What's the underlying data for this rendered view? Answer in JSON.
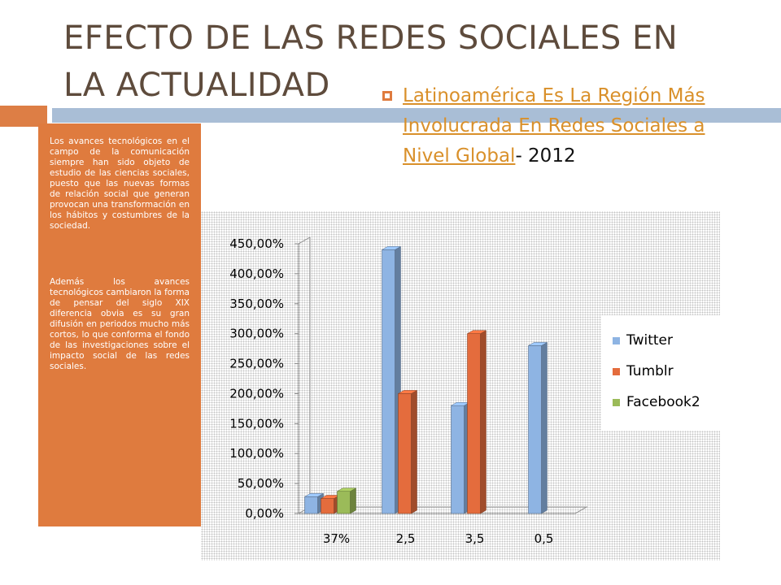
{
  "slide": {
    "title": "EFECTO DE LAS REDES SOCIALES EN LA ACTUALIDAD",
    "paragraph1": "Los avances tecnológicos en el campo de la comunicación siempre han sido objeto de estudio de las ciencias sociales, puesto que las nuevas formas de relación social que generan provocan una transformación en los hábitos y costumbres de la sociedad.",
    "paragraph2": "Además los avances tecnológicos cambiaron la forma de pensar del siglo XIX diferencia obvia es su gran difusión en periodos mucho más cortos, lo que conforma el fondo de las investigaciones sobre el impacto social de las redes sociales.",
    "bullet_link": "Latinoamérica Es La Región Más Involucrada En Redes Sociales a Nivel Global",
    "bullet_suffix": "- 2012"
  },
  "colors": {
    "title": "#5e4b3c",
    "accent_orange": "#df7b3e",
    "rule_blue": "#a9bed6",
    "link": "#d9902a"
  },
  "chart_data": {
    "type": "bar",
    "style": "3d-clustered-column",
    "categories": [
      "37%",
      "2,5",
      "3,5",
      "0,5"
    ],
    "series": [
      {
        "name": "Twitter",
        "color": "#8eb4e3",
        "values": [
          0.28,
          4.4,
          1.8,
          2.8
        ]
      },
      {
        "name": "Tumblr",
        "color": "#e46c3d",
        "values": [
          0.25,
          2.0,
          3.0,
          null
        ]
      },
      {
        "name": "Facebook2",
        "color": "#9bbb59",
        "values": [
          0.37,
          null,
          null,
          null
        ]
      }
    ],
    "ylim": [
      0,
      4.5
    ],
    "yticks": [
      0,
      0.5,
      1,
      1.5,
      2,
      2.5,
      3,
      3.5,
      4,
      4.5
    ],
    "ytick_labels": [
      "0,00%",
      "50,00%",
      "100,00%",
      "150,00%",
      "200,00%",
      "250,00%",
      "300,00%",
      "350,00%",
      "400,00%",
      "450,00%"
    ],
    "grid": false,
    "legend_position": "right"
  }
}
